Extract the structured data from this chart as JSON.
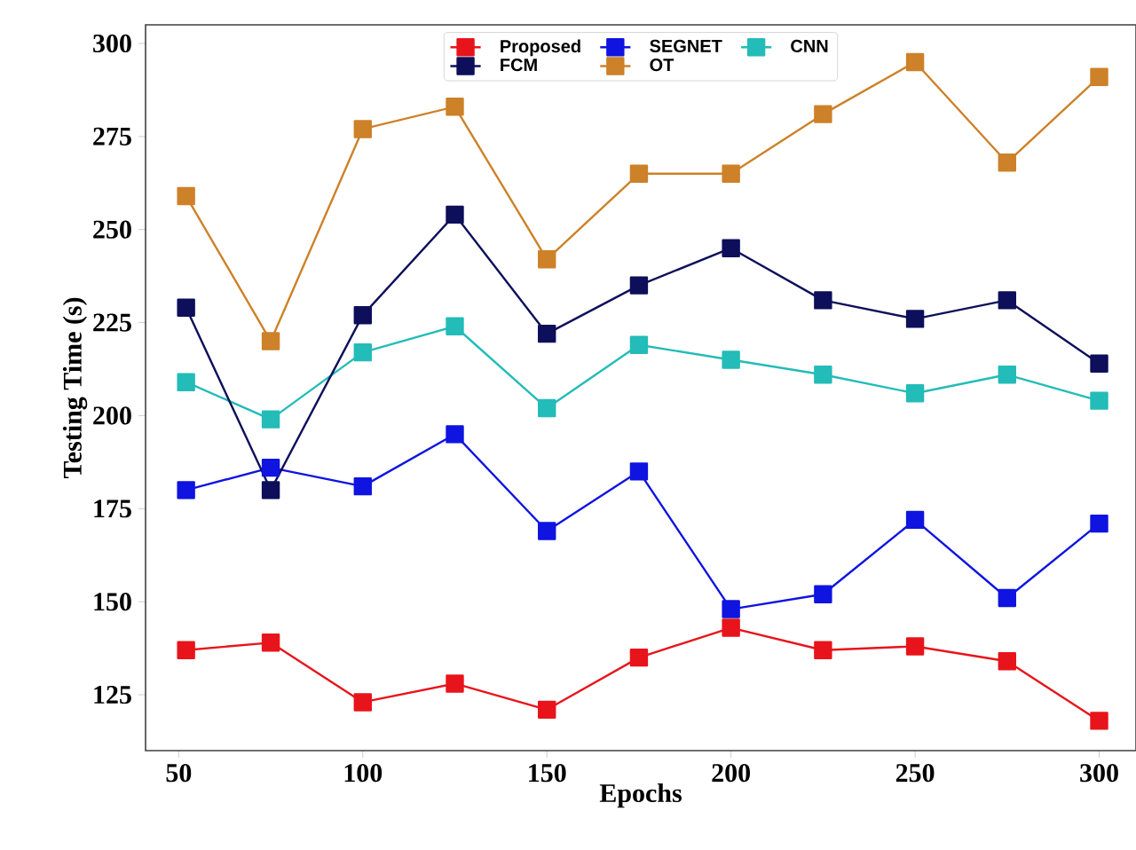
{
  "chart_data": {
    "type": "line",
    "xlabel": "Epochs",
    "ylabel": "Testing Time  (s)",
    "x": [
      52,
      75,
      100,
      125,
      150,
      175,
      200,
      225,
      250,
      275,
      300
    ],
    "series": [
      {
        "name": "Proposed",
        "color": "#e8141b",
        "values": [
          137,
          139,
          123,
          128,
          121,
          135,
          143,
          137,
          138,
          134,
          118
        ]
      },
      {
        "name": "SEGNET",
        "color": "#0f14e0",
        "values": [
          180,
          186,
          181,
          195,
          169,
          185,
          148,
          152,
          172,
          151,
          171
        ]
      },
      {
        "name": "CNN",
        "color": "#23bcb8",
        "values": [
          209,
          199,
          217,
          224,
          202,
          219,
          215,
          211,
          206,
          211,
          204
        ]
      },
      {
        "name": "FCM",
        "color": "#0d0f5a",
        "values": [
          229,
          180,
          227,
          254,
          222,
          235,
          245,
          231,
          226,
          231,
          214
        ]
      },
      {
        "name": "OT",
        "color": "#cd8128",
        "values": [
          259,
          220,
          277,
          283,
          242,
          265,
          265,
          281,
          295,
          268,
          291
        ]
      }
    ],
    "xlim": [
      41,
      310
    ],
    "ylim": [
      110,
      305
    ],
    "xticks": [
      50,
      100,
      150,
      200,
      250,
      300
    ],
    "yticks": [
      125,
      150,
      175,
      200,
      225,
      250,
      275,
      300
    ],
    "legend": "top",
    "marker": "square",
    "line_style": "solid",
    "grid": false
  }
}
